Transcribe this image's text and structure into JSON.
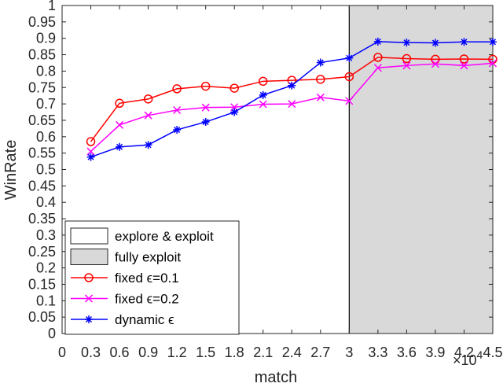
{
  "chart_data": {
    "type": "line",
    "xlabel": "match",
    "ylabel": "WinRate",
    "x_multiplier": "×10",
    "x_multiplier_exp": "4",
    "xlim": [
      0,
      4.5
    ],
    "ylim": [
      0,
      1
    ],
    "x_ticks": [
      "0",
      "0.3",
      "0.6",
      "0.9",
      "1.2",
      "1.5",
      "1.8",
      "2.1",
      "2.4",
      "2.7",
      "3",
      "3.3",
      "3.6",
      "3.9",
      "4.2",
      "4.5"
    ],
    "y_ticks": [
      "0",
      "0.05",
      "0.1",
      "0.15",
      "0.2",
      "0.25",
      "0.3",
      "0.35",
      "0.4",
      "0.45",
      "0.5",
      "0.55",
      "0.6",
      "0.65",
      "0.7",
      "0.75",
      "0.8",
      "0.85",
      "0.9",
      "0.95",
      "1"
    ],
    "regions": [
      {
        "label": "explore & exploit",
        "x_start": 0,
        "x_end": 3,
        "color": "#ffffff"
      },
      {
        "label": "fully exploit",
        "x_start": 3,
        "x_end": 4.5,
        "color": "#d9d9d9"
      }
    ],
    "x": [
      0.3,
      0.6,
      0.9,
      1.2,
      1.5,
      1.8,
      2.1,
      2.4,
      2.7,
      3.0,
      3.3,
      3.6,
      3.9,
      4.2,
      4.5
    ],
    "series": [
      {
        "name": "fixed ϵ=0.1",
        "color": "#ff0000",
        "marker": "circle",
        "values": [
          0.585,
          0.702,
          0.715,
          0.746,
          0.754,
          0.748,
          0.769,
          0.772,
          0.775,
          0.783,
          0.842,
          0.838,
          0.836,
          0.837,
          0.836
        ]
      },
      {
        "name": "fixed ϵ=0.2",
        "color": "#ff00ff",
        "marker": "x",
        "values": [
          0.555,
          0.636,
          0.665,
          0.681,
          0.689,
          0.69,
          0.699,
          0.7,
          0.72,
          0.709,
          0.81,
          0.817,
          0.822,
          0.817,
          0.824
        ]
      },
      {
        "name": "dynamic ϵ",
        "color": "#0000ff",
        "marker": "star",
        "values": [
          0.538,
          0.569,
          0.575,
          0.621,
          0.645,
          0.675,
          0.727,
          0.756,
          0.826,
          0.84,
          0.89,
          0.887,
          0.886,
          0.889,
          0.889
        ]
      }
    ],
    "legend": {
      "placement": "bottom-left"
    },
    "grid": false
  }
}
